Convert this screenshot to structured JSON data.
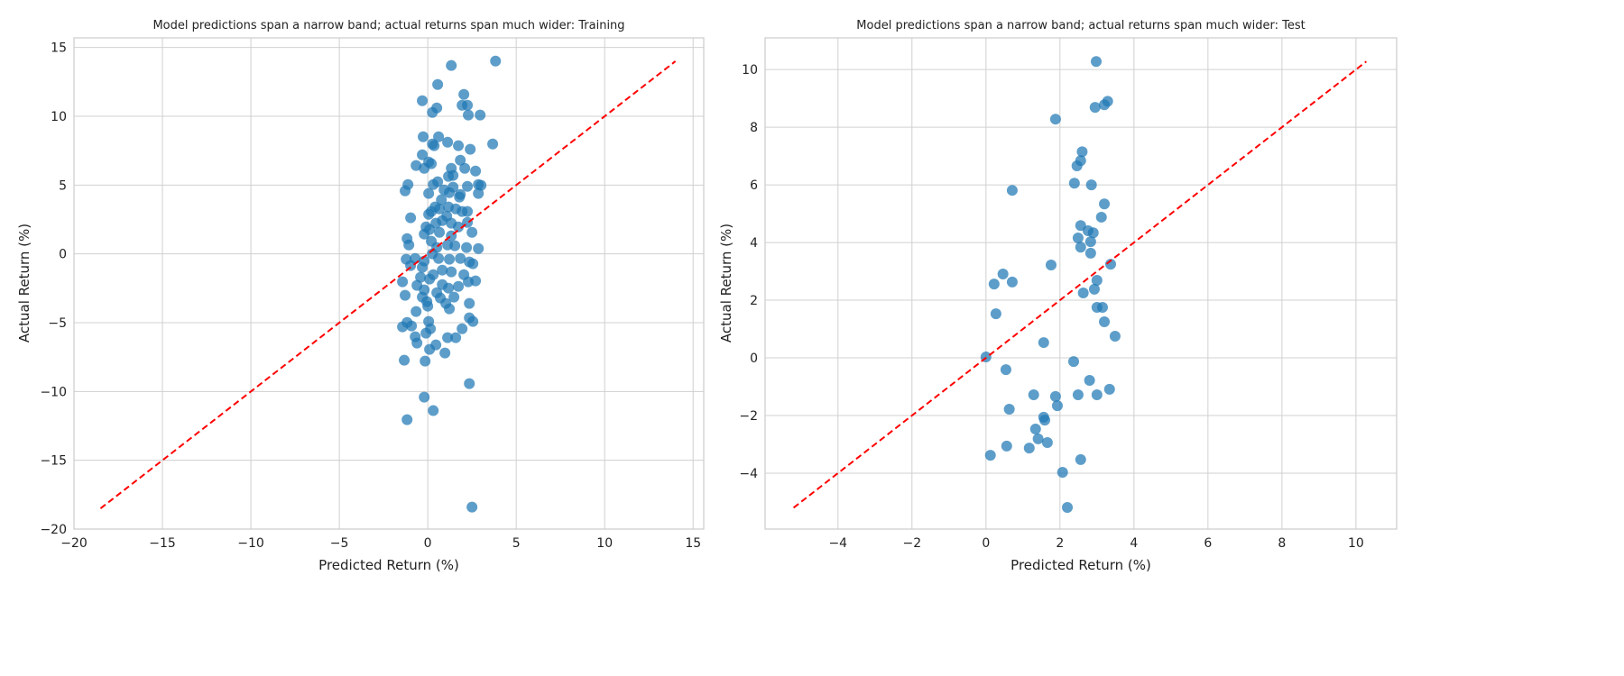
{
  "colors": {
    "points": "#1f77b4",
    "diagonal": "#ff0000",
    "grid": "#d0d0d0"
  },
  "chart_data": [
    {
      "type": "scatter",
      "title": "Model predictions span a narrow band; actual returns span much wider: Training",
      "xlabel": "Predicted Return (%)",
      "ylabel": "Actual Return (%)",
      "xlim": [
        -20,
        15.6
      ],
      "ylim": [
        -20,
        15.7
      ],
      "xticks": [
        -20,
        -15,
        -10,
        -5,
        0,
        5,
        10,
        15
      ],
      "yticks": [
        -20,
        -15,
        -10,
        -5,
        0,
        5,
        10,
        15
      ],
      "xtick_labels": [
        "−20",
        "−15",
        "−10",
        "−5",
        "0",
        "5",
        "10",
        "15"
      ],
      "ytick_labels": [
        "−20",
        "−15",
        "−10",
        "−5",
        "0",
        "5",
        "10",
        "15"
      ],
      "grid": true,
      "reference_line": {
        "from": [
          -18.5,
          -18.5
        ],
        "to": [
          14.0,
          14.0
        ],
        "style": "dashed"
      },
      "points": [
        [
          1.33,
          13.69
        ],
        [
          3.83,
          14.01
        ],
        [
          0.56,
          12.31
        ],
        [
          2.04,
          11.59
        ],
        [
          -0.31,
          11.13
        ],
        [
          0.51,
          10.61
        ],
        [
          1.94,
          10.8
        ],
        [
          2.24,
          10.8
        ],
        [
          0.26,
          10.28
        ],
        [
          2.29,
          10.09
        ],
        [
          2.96,
          10.09
        ],
        [
          -0.26,
          8.51
        ],
        [
          0.61,
          8.51
        ],
        [
          3.67,
          7.99
        ],
        [
          0.26,
          7.99
        ],
        [
          0.36,
          7.86
        ],
        [
          1.12,
          8.12
        ],
        [
          1.73,
          7.86
        ],
        [
          2.4,
          7.6
        ],
        [
          -0.31,
          7.2
        ],
        [
          -0.66,
          6.42
        ],
        [
          0.05,
          6.68
        ],
        [
          0.2,
          6.55
        ],
        [
          -0.2,
          6.22
        ],
        [
          1.33,
          6.22
        ],
        [
          1.84,
          6.81
        ],
        [
          2.09,
          6.22
        ],
        [
          2.7,
          6.02
        ],
        [
          1.43,
          5.7
        ],
        [
          1.17,
          5.63
        ],
        [
          0.31,
          5.04
        ],
        [
          0.56,
          5.24
        ],
        [
          -1.12,
          5.04
        ],
        [
          -1.28,
          4.58
        ],
        [
          0.92,
          4.65
        ],
        [
          1.43,
          4.85
        ],
        [
          1.84,
          4.32
        ],
        [
          2.24,
          4.91
        ],
        [
          2.86,
          5.04
        ],
        [
          3.01,
          4.98
        ],
        [
          2.86,
          4.39
        ],
        [
          0.05,
          4.39
        ],
        [
          1.22,
          4.45
        ],
        [
          1.79,
          4.13
        ],
        [
          0.77,
          3.93
        ],
        [
          -0.97,
          2.62
        ],
        [
          0.05,
          2.88
        ],
        [
          0.41,
          3.41
        ],
        [
          0.2,
          3.08
        ],
        [
          0.66,
          3.27
        ],
        [
          1.17,
          3.41
        ],
        [
          1.58,
          3.27
        ],
        [
          1.94,
          3.08
        ],
        [
          2.24,
          3.08
        ],
        [
          1.07,
          2.75
        ],
        [
          0.82,
          2.42
        ],
        [
          2.24,
          2.29
        ],
        [
          0.46,
          2.23
        ],
        [
          -0.1,
          1.96
        ],
        [
          0.1,
          1.77
        ],
        [
          1.33,
          2.23
        ],
        [
          1.73,
          1.96
        ],
        [
          0.66,
          1.57
        ],
        [
          1.33,
          1.31
        ],
        [
          2.5,
          1.57
        ],
        [
          -0.2,
          1.44
        ],
        [
          -1.17,
          1.11
        ],
        [
          -1.07,
          0.65
        ],
        [
          0.2,
          0.92
        ],
        [
          0.51,
          0.46
        ],
        [
          1.12,
          0.65
        ],
        [
          1.53,
          0.59
        ],
        [
          2.19,
          0.46
        ],
        [
          2.86,
          0.39
        ],
        [
          -1.22,
          -0.39
        ],
        [
          -0.71,
          -0.33
        ],
        [
          -0.2,
          -0.52
        ],
        [
          0.26,
          0.0
        ],
        [
          0.61,
          -0.33
        ],
        [
          1.22,
          -0.39
        ],
        [
          1.84,
          -0.33
        ],
        [
          2.35,
          -0.59
        ],
        [
          2.55,
          -0.72
        ],
        [
          -0.97,
          -0.85
        ],
        [
          -0.31,
          -0.98
        ],
        [
          0.82,
          -1.18
        ],
        [
          1.33,
          -1.31
        ],
        [
          0.31,
          -1.51
        ],
        [
          2.04,
          -1.51
        ],
        [
          -0.41,
          -1.7
        ],
        [
          0.1,
          -1.83
        ],
        [
          2.7,
          -1.96
        ],
        [
          -1.43,
          -2.03
        ],
        [
          2.29,
          -2.03
        ],
        [
          -0.61,
          -2.29
        ],
        [
          0.82,
          -2.23
        ],
        [
          1.73,
          -2.36
        ],
        [
          1.17,
          -2.49
        ],
        [
          -0.2,
          -2.62
        ],
        [
          0.51,
          -2.82
        ],
        [
          -1.28,
          -3.01
        ],
        [
          -0.31,
          -3.14
        ],
        [
          0.71,
          -3.21
        ],
        [
          1.48,
          -3.14
        ],
        [
          -0.05,
          -3.47
        ],
        [
          1.02,
          -3.6
        ],
        [
          2.35,
          -3.6
        ],
        [
          1.22,
          -3.99
        ],
        [
          -0.66,
          -4.19
        ],
        [
          0.0,
          -3.8
        ],
        [
          2.35,
          -4.65
        ],
        [
          2.55,
          -4.91
        ],
        [
          0.05,
          -4.91
        ],
        [
          -1.17,
          -4.98
        ],
        [
          -1.43,
          -5.3
        ],
        [
          -0.92,
          -5.24
        ],
        [
          0.15,
          -5.44
        ],
        [
          1.94,
          -5.44
        ],
        [
          -0.1,
          -5.76
        ],
        [
          -0.71,
          -6.02
        ],
        [
          1.12,
          -6.09
        ],
        [
          1.58,
          -6.09
        ],
        [
          -0.61,
          -6.48
        ],
        [
          0.46,
          -6.61
        ],
        [
          0.1,
          -6.94
        ],
        [
          0.97,
          -7.2
        ],
        [
          -1.33,
          -7.73
        ],
        [
          -0.15,
          -7.79
        ],
        [
          2.35,
          -9.43
        ],
        [
          -0.2,
          -10.41
        ],
        [
          0.31,
          -11.39
        ],
        [
          -1.17,
          -12.05
        ],
        [
          2.5,
          -18.4
        ]
      ]
    },
    {
      "type": "scatter",
      "title": "Model predictions span a narrow band; actual returns span much wider: Test",
      "xlabel": "Predicted Return (%)",
      "ylabel": "Actual Return (%)",
      "xlim": [
        -5.97,
        11.1
      ],
      "ylim": [
        -5.94,
        11.1
      ],
      "xticks": [
        -4,
        -2,
        0,
        2,
        4,
        6,
        8,
        10
      ],
      "yticks": [
        -4,
        -2,
        0,
        2,
        4,
        6,
        8,
        10
      ],
      "xtick_labels": [
        "−4",
        "−2",
        "0",
        "2",
        "4",
        "6",
        "8",
        "10"
      ],
      "ytick_labels": [
        "−4",
        "−2",
        "0",
        "2",
        "4",
        "6",
        "8",
        "10"
      ],
      "grid": true,
      "reference_line": {
        "from": [
          -5.2,
          -5.2
        ],
        "to": [
          10.28,
          10.28
        ],
        "style": "dashed"
      },
      "points": [
        [
          2.98,
          10.28
        ],
        [
          1.88,
          8.28
        ],
        [
          2.95,
          8.69
        ],
        [
          3.2,
          8.78
        ],
        [
          3.29,
          8.9
        ],
        [
          2.6,
          7.15
        ],
        [
          2.56,
          6.84
        ],
        [
          2.46,
          6.66
        ],
        [
          2.39,
          6.06
        ],
        [
          2.85,
          6.0
        ],
        [
          0.71,
          5.81
        ],
        [
          3.2,
          5.34
        ],
        [
          3.12,
          4.88
        ],
        [
          2.56,
          4.59
        ],
        [
          2.49,
          4.16
        ],
        [
          2.56,
          3.84
        ],
        [
          2.76,
          4.41
        ],
        [
          2.9,
          4.34
        ],
        [
          2.83,
          4.03
        ],
        [
          2.83,
          3.63
        ],
        [
          3.37,
          3.25
        ],
        [
          1.76,
          3.22
        ],
        [
          0.46,
          2.91
        ],
        [
          0.22,
          2.56
        ],
        [
          0.71,
          2.63
        ],
        [
          3.0,
          2.69
        ],
        [
          2.93,
          2.38
        ],
        [
          2.63,
          2.25
        ],
        [
          0.27,
          1.53
        ],
        [
          3.0,
          1.75
        ],
        [
          3.15,
          1.75
        ],
        [
          3.2,
          1.25
        ],
        [
          3.49,
          0.75
        ],
        [
          1.56,
          0.53
        ],
        [
          0.0,
          0.03
        ],
        [
          2.37,
          -0.13
        ],
        [
          0.54,
          -0.41
        ],
        [
          2.8,
          -0.78
        ],
        [
          3.34,
          -1.09
        ],
        [
          1.29,
          -1.28
        ],
        [
          2.49,
          -1.28
        ],
        [
          3.0,
          -1.28
        ],
        [
          1.88,
          -1.34
        ],
        [
          1.93,
          -1.66
        ],
        [
          0.63,
          -1.78
        ],
        [
          1.56,
          -2.06
        ],
        [
          1.59,
          -2.16
        ],
        [
          1.34,
          -2.47
        ],
        [
          1.41,
          -2.81
        ],
        [
          1.66,
          -2.94
        ],
        [
          0.56,
          -3.06
        ],
        [
          1.17,
          -3.13
        ],
        [
          0.12,
          -3.38
        ],
        [
          2.56,
          -3.53
        ],
        [
          2.07,
          -3.97
        ],
        [
          2.2,
          -5.19
        ]
      ]
    }
  ]
}
